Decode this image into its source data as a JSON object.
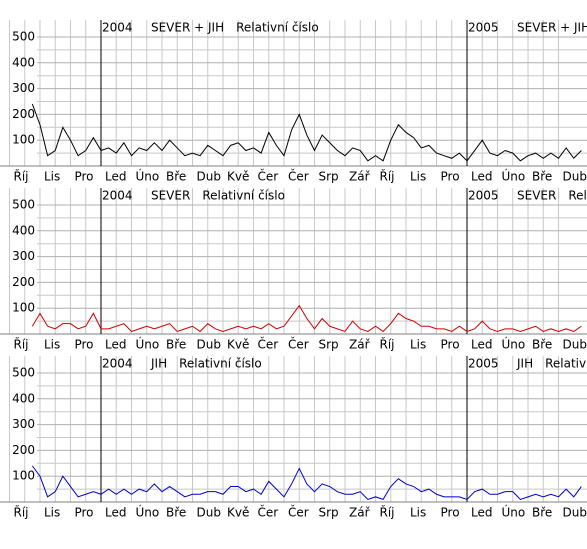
{
  "chart_data": [
    {
      "type": "line",
      "region": "SEVER + JIH",
      "subtitle": "Relativní číslo",
      "year_markers": [
        {
          "value": 0,
          "label": "2004"
        },
        {
          "value": 12,
          "label": "2005"
        }
      ],
      "x": [
        -2.25,
        -2,
        -1.75,
        -1.5,
        -1.25,
        -1,
        -0.75,
        -0.5,
        -0.25,
        0,
        0.25,
        0.5,
        0.75,
        1,
        1.25,
        1.5,
        1.75,
        2,
        2.25,
        2.5,
        2.75,
        3,
        3.25,
        3.5,
        3.75,
        4,
        4.25,
        4.5,
        4.75,
        5,
        5.25,
        5.5,
        5.75,
        6,
        6.25,
        6.5,
        6.75,
        7,
        7.25,
        7.5,
        7.75,
        8,
        8.25,
        8.5,
        8.75,
        9,
        9.25,
        9.5,
        9.75,
        10,
        10.25,
        10.5,
        10.75,
        11,
        11.25,
        11.5,
        11.75,
        12,
        12.25,
        12.5,
        12.75,
        13,
        13.25,
        13.5,
        13.75,
        14,
        14.25,
        14.5,
        14.75,
        15,
        15.25,
        15.5,
        15.75
      ],
      "values": [
        240,
        160,
        40,
        60,
        150,
        100,
        40,
        60,
        110,
        60,
        70,
        50,
        90,
        40,
        70,
        60,
        90,
        60,
        100,
        70,
        40,
        50,
        40,
        80,
        60,
        40,
        80,
        90,
        60,
        70,
        50,
        130,
        80,
        40,
        140,
        200,
        120,
        60,
        120,
        90,
        60,
        40,
        70,
        60,
        20,
        40,
        20,
        100,
        160,
        130,
        110,
        70,
        80,
        50,
        40,
        30,
        50,
        20,
        60,
        100,
        50,
        40,
        60,
        50,
        20,
        40,
        50,
        30,
        50,
        30,
        70,
        30,
        60
      ],
      "color": "#000000",
      "xlim": [
        -3.311,
        15.934
      ],
      "ylim": [
        0,
        500
      ],
      "yticks": [
        100,
        200,
        300,
        400,
        500
      ],
      "minor_yticks": [
        50,
        150,
        250,
        350,
        450
      ],
      "xticks": [
        {
          "value": -3,
          "label": "Říj"
        },
        {
          "value": -2,
          "label": "Lis"
        },
        {
          "value": -1,
          "label": "Pro"
        },
        {
          "value": 0,
          "label": "Led"
        },
        {
          "value": 1,
          "label": "Úno"
        },
        {
          "value": 2,
          "label": "Bře"
        },
        {
          "value": 3,
          "label": "Dub"
        },
        {
          "value": 4,
          "label": "Kvě"
        },
        {
          "value": 5,
          "label": "Čer"
        },
        {
          "value": 6,
          "label": "Čer"
        },
        {
          "value": 7,
          "label": "Srp"
        },
        {
          "value": 8,
          "label": "Zář"
        },
        {
          "value": 9,
          "label": "Říj"
        },
        {
          "value": 10,
          "label": "Lis"
        },
        {
          "value": 11,
          "label": "Pro"
        },
        {
          "value": 12,
          "label": "Led"
        },
        {
          "value": 13,
          "label": "Úno"
        },
        {
          "value": 14,
          "label": "Bře"
        },
        {
          "value": 15,
          "label": "Dub"
        }
      ],
      "grid": true
    },
    {
      "type": "line",
      "region": "SEVER",
      "subtitle": "Relativní číslo",
      "year_markers": [
        {
          "value": 0,
          "label": "2004"
        },
        {
          "value": 12,
          "label": "2005"
        }
      ],
      "x": [
        -2.25,
        -2,
        -1.75,
        -1.5,
        -1.25,
        -1,
        -0.75,
        -0.5,
        -0.25,
        0,
        0.25,
        0.5,
        0.75,
        1,
        1.25,
        1.5,
        1.75,
        2,
        2.25,
        2.5,
        2.75,
        3,
        3.25,
        3.5,
        3.75,
        4,
        4.25,
        4.5,
        4.75,
        5,
        5.25,
        5.5,
        5.75,
        6,
        6.25,
        6.5,
        6.75,
        7,
        7.25,
        7.5,
        7.75,
        8,
        8.25,
        8.5,
        8.75,
        9,
        9.25,
        9.5,
        9.75,
        10,
        10.25,
        10.5,
        10.75,
        11,
        11.25,
        11.5,
        11.75,
        12,
        12.25,
        12.5,
        12.75,
        13,
        13.25,
        13.5,
        13.75,
        14,
        14.25,
        14.5,
        14.75,
        15,
        15.25,
        15.5,
        15.75
      ],
      "values": [
        30,
        80,
        30,
        20,
        40,
        40,
        20,
        30,
        80,
        20,
        20,
        30,
        40,
        10,
        20,
        30,
        20,
        30,
        40,
        10,
        20,
        30,
        10,
        40,
        20,
        10,
        20,
        30,
        20,
        30,
        20,
        40,
        20,
        30,
        70,
        110,
        60,
        20,
        60,
        30,
        20,
        10,
        50,
        20,
        10,
        30,
        10,
        40,
        80,
        60,
        50,
        30,
        30,
        20,
        20,
        10,
        30,
        10,
        20,
        50,
        20,
        10,
        20,
        20,
        10,
        20,
        30,
        10,
        20,
        10,
        20,
        10,
        30
      ],
      "color": "#d00000",
      "xlim": [
        -3.311,
        15.934
      ],
      "ylim": [
        0,
        500
      ],
      "yticks": [
        100,
        200,
        300,
        400,
        500
      ],
      "minor_yticks": [
        50,
        150,
        250,
        350,
        450
      ],
      "xticks": [
        {
          "value": -3,
          "label": "Říj"
        },
        {
          "value": -2,
          "label": "Lis"
        },
        {
          "value": -1,
          "label": "Pro"
        },
        {
          "value": 0,
          "label": "Led"
        },
        {
          "value": 1,
          "label": "Úno"
        },
        {
          "value": 2,
          "label": "Bře"
        },
        {
          "value": 3,
          "label": "Dub"
        },
        {
          "value": 4,
          "label": "Kvě"
        },
        {
          "value": 5,
          "label": "Čer"
        },
        {
          "value": 6,
          "label": "Čer"
        },
        {
          "value": 7,
          "label": "Srp"
        },
        {
          "value": 8,
          "label": "Zář"
        },
        {
          "value": 9,
          "label": "Říj"
        },
        {
          "value": 10,
          "label": "Lis"
        },
        {
          "value": 11,
          "label": "Pro"
        },
        {
          "value": 12,
          "label": "Led"
        },
        {
          "value": 13,
          "label": "Úno"
        },
        {
          "value": 14,
          "label": "Bře"
        },
        {
          "value": 15,
          "label": "Dub"
        }
      ],
      "grid": true
    },
    {
      "type": "line",
      "region": "JIH",
      "subtitle": "Relativní číslo",
      "year_markers": [
        {
          "value": 0,
          "label": "2004"
        },
        {
          "value": 12,
          "label": "2005"
        }
      ],
      "x": [
        -2.25,
        -2,
        -1.75,
        -1.5,
        -1.25,
        -1,
        -0.75,
        -0.5,
        -0.25,
        0,
        0.25,
        0.5,
        0.75,
        1,
        1.25,
        1.5,
        1.75,
        2,
        2.25,
        2.5,
        2.75,
        3,
        3.25,
        3.5,
        3.75,
        4,
        4.25,
        4.5,
        4.75,
        5,
        5.25,
        5.5,
        5.75,
        6,
        6.25,
        6.5,
        6.75,
        7,
        7.25,
        7.5,
        7.75,
        8,
        8.25,
        8.5,
        8.75,
        9,
        9.25,
        9.5,
        9.75,
        10,
        10.25,
        10.5,
        10.75,
        11,
        11.25,
        11.5,
        11.75,
        12,
        12.25,
        12.5,
        12.75,
        13,
        13.25,
        13.5,
        13.75,
        14,
        14.25,
        14.5,
        14.75,
        15,
        15.25,
        15.5,
        15.75
      ],
      "values": [
        140,
        100,
        20,
        40,
        100,
        60,
        20,
        30,
        40,
        30,
        50,
        30,
        50,
        30,
        50,
        40,
        70,
        40,
        60,
        40,
        20,
        30,
        30,
        40,
        40,
        30,
        60,
        60,
        40,
        50,
        30,
        80,
        50,
        20,
        70,
        130,
        70,
        40,
        70,
        60,
        40,
        30,
        30,
        40,
        10,
        20,
        10,
        60,
        90,
        70,
        60,
        40,
        50,
        30,
        20,
        20,
        20,
        10,
        40,
        50,
        30,
        30,
        40,
        40,
        10,
        20,
        30,
        20,
        30,
        20,
        50,
        20,
        60
      ],
      "color": "#0000c8",
      "xlim": [
        -3.311,
        15.934
      ],
      "ylim": [
        0,
        500
      ],
      "yticks": [
        100,
        200,
        300,
        400,
        500
      ],
      "minor_yticks": [
        50,
        150,
        250,
        350,
        450
      ],
      "xticks": [
        {
          "value": -3,
          "label": "Říj"
        },
        {
          "value": -2,
          "label": "Lis"
        },
        {
          "value": -1,
          "label": "Pro"
        },
        {
          "value": 0,
          "label": "Led"
        },
        {
          "value": 1,
          "label": "Úno"
        },
        {
          "value": 2,
          "label": "Bře"
        },
        {
          "value": 3,
          "label": "Dub"
        },
        {
          "value": 4,
          "label": "Kvě"
        },
        {
          "value": 5,
          "label": "Čer"
        },
        {
          "value": 6,
          "label": "Čer"
        },
        {
          "value": 7,
          "label": "Srp"
        },
        {
          "value": 8,
          "label": "Zář"
        },
        {
          "value": 9,
          "label": "Říj"
        },
        {
          "value": 10,
          "label": "Lis"
        },
        {
          "value": 11,
          "label": "Pro"
        },
        {
          "value": 12,
          "label": "Led"
        },
        {
          "value": 13,
          "label": "Úno"
        },
        {
          "value": 14,
          "label": "Bře"
        },
        {
          "value": 15,
          "label": "Dub"
        }
      ],
      "grid": true
    }
  ]
}
